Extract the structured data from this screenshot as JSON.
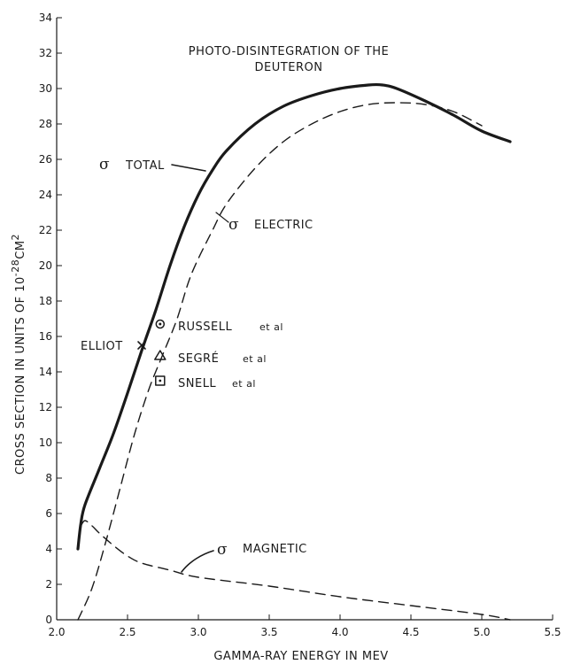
{
  "chart_data": {
    "type": "line",
    "title": "PHOTO-DISINTEGRATION OF THE",
    "subtitle": "DEUTERON",
    "xlabel": "GAMMA-RAY ENERGY IN MEV",
    "ylabel_main": "CROSS SECTION IN UNITS OF 10",
    "ylabel_exponent": "-28",
    "ylabel_unit": "CM",
    "ylabel_unit_exponent": "2",
    "xlim": [
      2.0,
      5.5
    ],
    "ylim": [
      0,
      34
    ],
    "xticks": [
      2.0,
      2.5,
      3.0,
      3.5,
      4.0,
      4.5,
      5.0,
      5.5
    ],
    "xtick_labels": [
      "2.0",
      "2.5",
      "3.0",
      "3.5",
      "4.0",
      "4.5",
      "5.0",
      "5.5"
    ],
    "yticks": [
      0,
      2,
      4,
      6,
      8,
      10,
      12,
      14,
      16,
      18,
      20,
      22,
      24,
      26,
      28,
      30,
      32,
      34
    ],
    "ytick_labels": [
      "0",
      "2",
      "4",
      "6",
      "8",
      "10",
      "12",
      "14",
      "16",
      "18",
      "20",
      "22",
      "24",
      "26",
      "28",
      "30",
      "32",
      "34"
    ],
    "grid": false,
    "series": [
      {
        "name": "TOTAL",
        "style": "solid",
        "x": [
          2.15,
          2.17,
          2.2,
          2.3,
          2.4,
          2.5,
          2.6,
          2.7,
          2.8,
          2.9,
          3.0,
          3.1,
          3.2,
          3.4,
          3.6,
          3.8,
          4.0,
          4.2,
          4.3,
          4.4,
          4.6,
          4.8,
          5.0,
          5.2
        ],
        "y": [
          4.0,
          5.4,
          6.5,
          8.5,
          10.5,
          12.8,
          15.2,
          17.5,
          20.0,
          22.2,
          24.0,
          25.4,
          26.5,
          28.0,
          29.0,
          29.6,
          30.0,
          30.2,
          30.2,
          30.0,
          29.3,
          28.5,
          27.6,
          27.0
        ]
      },
      {
        "name": "ELECTRIC",
        "style": "dashed",
        "x": [
          2.15,
          2.25,
          2.35,
          2.45,
          2.55,
          2.65,
          2.75,
          2.85,
          2.95,
          3.1,
          3.2,
          3.4,
          3.6,
          3.8,
          4.0,
          4.2,
          4.4,
          4.6,
          4.8,
          5.0
        ],
        "y": [
          0.0,
          1.8,
          4.5,
          7.5,
          10.5,
          13.0,
          15.0,
          17.0,
          19.5,
          22.0,
          23.5,
          25.5,
          27.0,
          28.0,
          28.7,
          29.1,
          29.2,
          29.1,
          28.7,
          27.9
        ]
      },
      {
        "name": "MAGNETIC",
        "style": "dashed",
        "x": [
          2.17,
          2.2,
          2.25,
          2.3,
          2.4,
          2.5,
          2.6,
          2.8,
          3.0,
          3.5,
          4.0,
          4.5,
          5.0,
          5.2
        ],
        "y": [
          5.3,
          5.6,
          5.3,
          4.9,
          4.2,
          3.6,
          3.2,
          2.8,
          2.4,
          1.9,
          1.3,
          0.8,
          0.3,
          0.0
        ]
      }
    ],
    "curve_labels": {
      "total": "TOTAL",
      "electric": "ELECTRIC",
      "magnetic": "MAGNETIC",
      "sigma": "σ"
    },
    "data_points": [
      {
        "name": "ELLIOT",
        "marker": "X",
        "x": 2.6,
        "y": 15.5,
        "label": "ELLIOT"
      },
      {
        "name": "RUSSELL et al",
        "marker": "circle-dot",
        "x": 2.73,
        "y": 16.7,
        "label": "RUSSELL",
        "suffix": "et al"
      },
      {
        "name": "SEGRE et al",
        "marker": "triangle",
        "x": 2.73,
        "y": 14.9,
        "label": "SEGRÉ",
        "suffix": "et al"
      },
      {
        "name": "SNELL et al",
        "marker": "square-dot",
        "x": 2.73,
        "y": 13.5,
        "label": "SNELL",
        "suffix": "et al"
      }
    ]
  }
}
